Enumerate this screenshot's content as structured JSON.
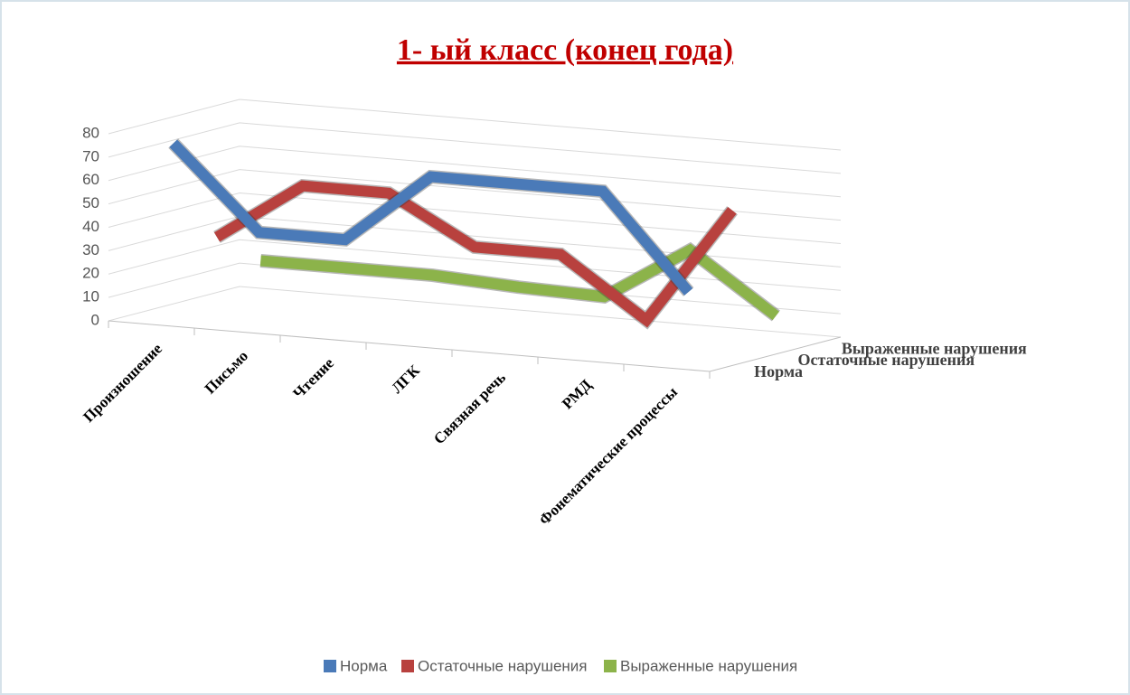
{
  "chart_data": {
    "type": "line3d",
    "title": "1- ый класс (конец года)",
    "categories": [
      "Произношение",
      "Письмо",
      "Чтение",
      "ЛГК",
      "Связная речь",
      "РМД",
      "Фонематические процессы"
    ],
    "series": [
      {
        "name": "Норма",
        "color": "#4a7ab8",
        "values": [
          75,
          40,
          40,
          70,
          70,
          70,
          30
        ]
      },
      {
        "name": "Остаточные нарушения",
        "color": "#b8413e",
        "values": [
          30,
          55,
          55,
          35,
          35,
          10,
          60
        ]
      },
      {
        "name": "Выраженные нарушения",
        "color": "#8cb34a",
        "values": [
          15,
          15,
          15,
          13,
          12,
          35,
          10
        ]
      }
    ],
    "ylim": [
      0,
      80
    ],
    "yticks": [
      0,
      10,
      20,
      30,
      40,
      50,
      60,
      70,
      80
    ],
    "grid": true,
    "legend": "bottom"
  }
}
